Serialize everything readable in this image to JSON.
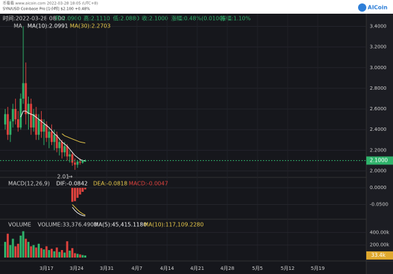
{
  "header": {
    "site": "币看看 www.aicoin.com 2022-03-28 18:05 (UTC+8)",
    "pair": "SYN/USD Coinbase Pro [1小时] $2.100 +0.48%",
    "logo": "AICoin",
    "ohlc": [
      "时间:2022-03-28 08:00",
      "开:2.0900",
      "高:2.1110",
      "低:2.0880",
      "收:2.1000",
      "涨幅:0.48%(0.0100)",
      "振幅:1.10%"
    ]
  },
  "chart_data": [
    {
      "type": "candlestick",
      "indicator": "MA",
      "up_color": "#2fb36b",
      "down_color": "#e0433e",
      "x": [
        7.4,
        8.0,
        8.6,
        9.2,
        9.8,
        10.4,
        11.0,
        11.6,
        12.2,
        12.8,
        13.4,
        14.0,
        14.6,
        15.2,
        15.8,
        16.4,
        17.0,
        17.6,
        18.2,
        18.8,
        19.4,
        20.0,
        20.6,
        21.2,
        21.8,
        22.4,
        23.0,
        23.6,
        24.2,
        24.8,
        25.4,
        26.0
      ],
      "open": [
        2.45,
        2.55,
        2.35,
        2.48,
        2.6,
        2.5,
        2.42,
        2.7,
        2.85,
        2.55,
        2.65,
        2.42,
        2.55,
        2.35,
        2.5,
        2.38,
        2.45,
        2.32,
        2.38,
        2.28,
        2.35,
        2.22,
        2.28,
        2.18,
        2.24,
        2.14,
        2.16,
        2.08,
        2.06,
        2.09,
        2.08,
        2.09
      ],
      "high": [
        2.6,
        2.62,
        2.5,
        2.65,
        2.7,
        2.58,
        2.75,
        3.4,
        3.05,
        2.72,
        2.7,
        2.6,
        2.62,
        2.55,
        2.58,
        2.5,
        2.48,
        2.42,
        2.45,
        2.4,
        2.38,
        2.32,
        2.3,
        2.28,
        2.26,
        2.2,
        2.18,
        2.12,
        2.1,
        2.12,
        2.11,
        2.111
      ],
      "low": [
        2.4,
        2.3,
        2.28,
        2.42,
        2.45,
        2.38,
        2.4,
        2.65,
        2.45,
        2.4,
        2.35,
        2.38,
        2.3,
        2.3,
        2.32,
        2.25,
        2.28,
        2.22,
        2.25,
        2.2,
        2.18,
        2.15,
        2.12,
        2.14,
        2.1,
        2.08,
        2.05,
        2.01,
        2.03,
        2.06,
        2.07,
        2.088
      ],
      "close": [
        2.55,
        2.35,
        2.48,
        2.6,
        2.5,
        2.42,
        2.7,
        2.85,
        2.55,
        2.65,
        2.42,
        2.55,
        2.35,
        2.5,
        2.38,
        2.45,
        2.32,
        2.38,
        2.28,
        2.35,
        2.22,
        2.28,
        2.18,
        2.24,
        2.14,
        2.16,
        2.08,
        2.06,
        2.09,
        2.08,
        2.1,
        2.1
      ],
      "series": [
        {
          "name": "MA(10):2.0991",
          "color": "#f2f2f2",
          "values": [
            null,
            null,
            null,
            null,
            null,
            null,
            2.52,
            2.58,
            2.58,
            2.56,
            2.55,
            2.54,
            2.52,
            2.5,
            2.48,
            2.46,
            2.44,
            2.42,
            2.39,
            2.36,
            2.34,
            2.31,
            2.28,
            2.26,
            2.24,
            2.21,
            2.18,
            2.15,
            2.13,
            2.11,
            2.1,
            2.0991
          ]
        },
        {
          "name": "MA(30):2.2703",
          "color": "#e8c94a",
          "values": [
            null,
            null,
            null,
            null,
            null,
            null,
            null,
            null,
            null,
            null,
            null,
            null,
            null,
            null,
            null,
            null,
            null,
            null,
            null,
            null,
            null,
            null,
            2.36,
            2.34,
            2.33,
            2.32,
            2.31,
            2.3,
            2.29,
            2.28,
            2.275,
            2.2703
          ]
        }
      ],
      "ylim": [
        1.95,
        3.45
      ],
      "yticks": [
        {
          "value": 2.0,
          "label": "2.0000"
        },
        {
          "value": 2.2,
          "label": "2.2000"
        },
        {
          "value": 2.4,
          "label": "2.4000"
        },
        {
          "value": 2.6,
          "label": "2.6000"
        },
        {
          "value": 2.8,
          "label": "2.8000"
        },
        {
          "value": 3.0,
          "label": "3.0000"
        },
        {
          "value": 3.2,
          "label": "3.2000"
        },
        {
          "value": 3.4,
          "label": "3.4000"
        }
      ],
      "last_price": {
        "value": 2.1,
        "label": "2.1000"
      },
      "low_marker": {
        "value": 2.01,
        "label": "2.01"
      },
      "xlim": [
        6.2,
        90.8
      ],
      "xticks": [
        {
          "value": 17,
          "label": "3月17"
        },
        {
          "value": 24,
          "label": "3月24"
        },
        {
          "value": 31,
          "label": "3月31"
        },
        {
          "value": 38,
          "label": "4月7"
        },
        {
          "value": 45,
          "label": "4月14"
        },
        {
          "value": 52,
          "label": "4月21"
        },
        {
          "value": 59,
          "label": "4月28"
        },
        {
          "value": 66,
          "label": "5月5"
        },
        {
          "value": 73,
          "label": "5月12"
        },
        {
          "value": 80,
          "label": "5月19"
        }
      ]
    },
    {
      "type": "macd",
      "title": "MACD(12,26,9)",
      "series": [
        {
          "name": "DIF:-0.0842",
          "color": "#f2f2f2",
          "values": [
            null,
            null,
            null,
            null,
            null,
            null,
            null,
            null,
            null,
            null,
            null,
            null,
            null,
            null,
            null,
            null,
            null,
            null,
            null,
            null,
            null,
            null,
            null,
            null,
            null,
            null,
            -0.058,
            -0.068,
            -0.075,
            -0.08,
            -0.083,
            -0.0842
          ]
        },
        {
          "name": "DEA:-0.0818",
          "color": "#e8c94a",
          "values": [
            null,
            null,
            null,
            null,
            null,
            null,
            null,
            null,
            null,
            null,
            null,
            null,
            null,
            null,
            null,
            null,
            null,
            null,
            null,
            null,
            null,
            null,
            null,
            null,
            null,
            null,
            -0.05,
            -0.058,
            -0.066,
            -0.073,
            -0.078,
            -0.0818
          ]
        }
      ],
      "bars": {
        "name": "MACD:-0.0047",
        "color": "#e0433e",
        "values": [
          null,
          null,
          null,
          null,
          null,
          null,
          null,
          null,
          null,
          null,
          null,
          null,
          null,
          null,
          null,
          null,
          null,
          null,
          null,
          null,
          null,
          null,
          null,
          null,
          null,
          null,
          -0.042,
          -0.04,
          -0.03,
          -0.02,
          -0.012,
          -0.0047
        ]
      },
      "ylim": [
        -0.09,
        0.025
      ],
      "yticks": [
        {
          "value": 0,
          "label": "0.0000"
        },
        {
          "value": -0.05,
          "label": "-0.0500"
        }
      ]
    },
    {
      "type": "volume",
      "title": "VOLUME",
      "series": [
        {
          "name": "VOLUME:33,376.4900",
          "color": "#cfcfcf",
          "values": [
            250000,
            380000,
            200000,
            300000,
            180000,
            220000,
            350000,
            420000,
            300000,
            250000,
            180000,
            200000,
            160000,
            220000,
            150000,
            130000,
            180000,
            120000,
            140000,
            100000,
            160000,
            90000,
            120000,
            80000,
            260000,
            110000,
            150000,
            70000,
            60000,
            50000,
            40000,
            33376.49
          ]
        }
      ],
      "legend": [
        {
          "name": "MA(5):45,415.1180",
          "color": "#f2f2f2"
        },
        {
          "name": "MA(10):117,109.2280",
          "color": "#e8c94a"
        }
      ],
      "ylim": [
        0,
        590000
      ],
      "yticks": [
        {
          "value": 200000,
          "label": "200.00k"
        },
        {
          "value": 400000,
          "label": "400.00k"
        }
      ],
      "last_volume": {
        "value": 33376.49,
        "label": "33.4k"
      }
    }
  ]
}
